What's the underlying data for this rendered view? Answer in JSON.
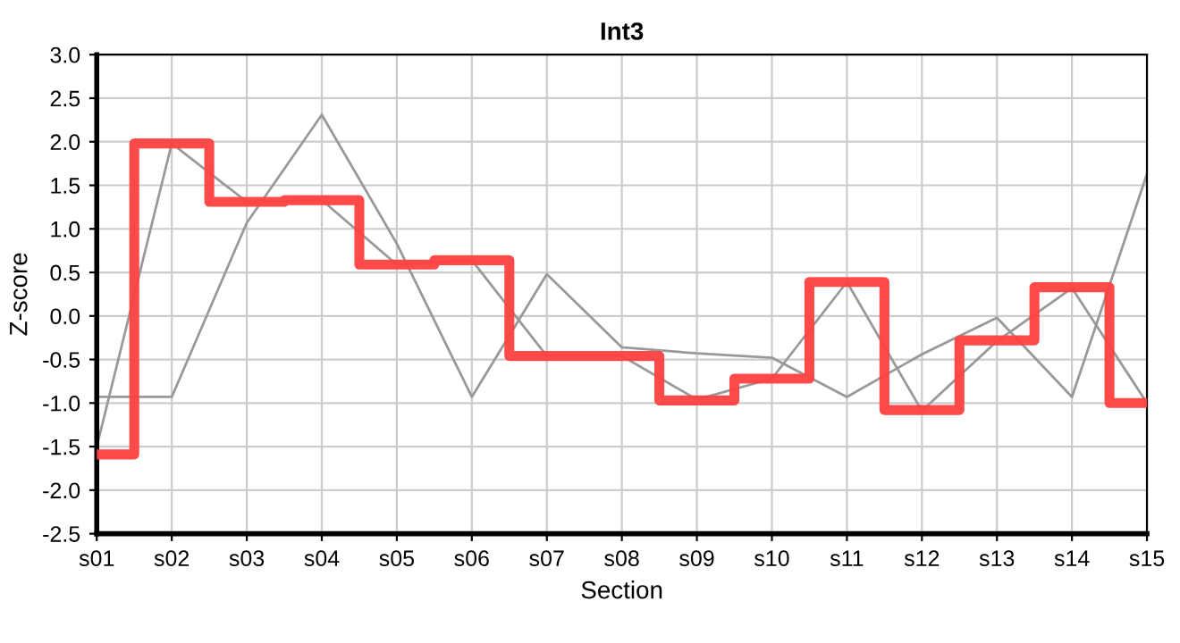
{
  "chart_data": {
    "type": "line",
    "title": "Int3",
    "xlabel": "Section",
    "ylabel": "Z-score",
    "categories": [
      "s01",
      "s02",
      "s03",
      "s04",
      "s05",
      "s06",
      "s07",
      "s08",
      "s09",
      "s10",
      "s11",
      "s12",
      "s13",
      "s14",
      "s15"
    ],
    "series": [
      {
        "color": "#999999",
        "values": [
          -0.93,
          -0.93,
          1.07,
          2.31,
          0.83,
          -0.93,
          0.48,
          -0.36,
          -0.43,
          -0.48,
          -0.93,
          -0.44,
          -0.02,
          -0.93,
          1.63
        ]
      },
      {
        "color": "#999999",
        "values": [
          -1.5,
          1.98,
          1.31,
          1.33,
          0.59,
          0.64,
          -0.46,
          -0.46,
          -0.96,
          -0.72,
          0.39,
          -1.09,
          -0.29,
          0.32,
          -1.0
        ]
      },
      {
        "type": "step",
        "color": "#ff4040",
        "values": [
          -1.59,
          1.98,
          1.31,
          1.33,
          0.59,
          0.64,
          -0.46,
          -0.46,
          -0.97,
          -0.72,
          0.39,
          -1.08,
          -0.28,
          0.33,
          -1.0
        ]
      }
    ],
    "ylim": [
      -2.5,
      3.0
    ],
    "yticks": [
      {
        "value": -2.5,
        "label": "-2.5"
      },
      {
        "value": -2.0,
        "label": "-2.0"
      },
      {
        "value": -1.5,
        "label": "-1.5"
      },
      {
        "value": -1.0,
        "label": "-1.0"
      },
      {
        "value": -0.5,
        "label": "-0.5"
      },
      {
        "value": 0.0,
        "label": "0.0"
      },
      {
        "value": 0.5,
        "label": "0.5"
      },
      {
        "value": 1.0,
        "label": "1.0"
      },
      {
        "value": 1.5,
        "label": "1.5"
      },
      {
        "value": 2.0,
        "label": "2.0"
      },
      {
        "value": 2.5,
        "label": "2.5"
      },
      {
        "value": 3.0,
        "label": "3.0"
      }
    ],
    "grid": true
  }
}
